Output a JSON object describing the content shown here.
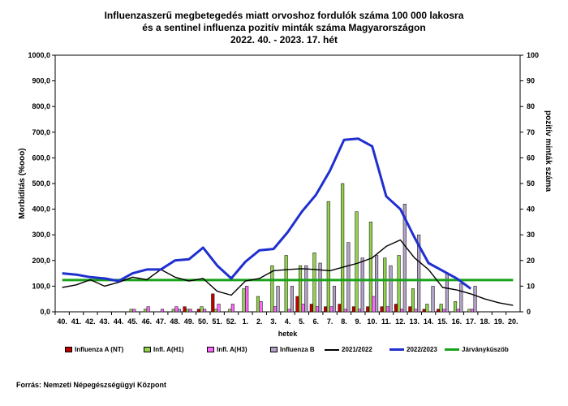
{
  "title_lines": [
    "Influenzaszerű megbetegedés miatt orvoshoz fordulók száma 100 000 lakosra",
    "és a sentinel influenza pozitív minták száma Magyarországon",
    "2022. 40. - 2023. 17. hét"
  ],
  "source": "Forrás: Nemzeti Népegészségügyi Központ",
  "chart_data": {
    "type": "bar",
    "xlabel": "hetek",
    "ylabel": "Morbiditás (%ooo)",
    "y2label": "pozitív minták száma",
    "ylim": [
      0,
      1000
    ],
    "y2lim": [
      0,
      100
    ],
    "yticks": [
      "0,0",
      "100,0",
      "200,0",
      "300,0",
      "400,0",
      "500,0",
      "600,0",
      "700,0",
      "800,0",
      "900,0",
      "1000,0"
    ],
    "y2ticks": [
      "0",
      "10",
      "20",
      "30",
      "40",
      "50",
      "60",
      "70",
      "80",
      "90",
      "100"
    ],
    "categories": [
      "40.",
      "41.",
      "42.",
      "43.",
      "44.",
      "45.",
      "46.",
      "47.",
      "48.",
      "49.",
      "50.",
      "51.",
      "52.",
      "1.",
      "2.",
      "3.",
      "4.",
      "5.",
      "6.",
      "7.",
      "8.",
      "9.",
      "10.",
      "11.",
      "12.",
      "13.",
      "14.",
      "15.",
      "16.",
      "17.",
      "18.",
      "19.",
      "20."
    ],
    "bar_series": [
      {
        "name": "Influenza A (NT)",
        "color": "#c00000",
        "values": [
          0,
          0,
          0,
          0,
          0,
          0,
          0,
          0,
          0,
          2,
          1,
          7,
          0,
          0,
          0,
          0,
          0,
          6,
          3,
          2,
          3,
          2,
          2,
          2,
          3,
          2,
          1,
          1,
          0,
          0,
          0,
          0,
          0
        ]
      },
      {
        "name": "Infl. A(H1)",
        "color": "#92d050",
        "values": [
          0,
          0,
          0,
          0,
          0,
          1,
          1,
          0,
          1,
          1,
          2,
          1,
          1,
          9,
          6,
          18,
          22,
          18,
          23,
          43,
          50,
          39,
          35,
          21,
          22,
          9,
          3,
          3,
          4,
          1,
          0,
          0,
          0
        ]
      },
      {
        "name": "Infl. A(H3)",
        "color": "#ff66ff",
        "values": [
          0,
          0,
          0,
          0,
          0,
          1,
          2,
          1,
          2,
          1,
          1,
          3,
          3,
          10,
          4,
          2,
          1,
          3,
          2,
          2,
          1,
          1,
          6,
          2,
          1,
          1,
          0,
          1,
          1,
          1,
          0,
          0,
          0
        ]
      },
      {
        "name": "Influenza B",
        "color": "#b3a2c7",
        "values": [
          0,
          0,
          0,
          0,
          0,
          0,
          0,
          0,
          1,
          0,
          0,
          0,
          0,
          0,
          0,
          10,
          10,
          18,
          19,
          10,
          27,
          21,
          22,
          18,
          42,
          30,
          10,
          15,
          11,
          10,
          0,
          0,
          0
        ]
      }
    ],
    "line_series": [
      {
        "name": "2021/2022",
        "color": "#000000",
        "values": [
          95,
          105,
          125,
          100,
          115,
          135,
          125,
          165,
          135,
          120,
          130,
          80,
          65,
          120,
          130,
          160,
          165,
          168,
          165,
          160,
          175,
          190,
          210,
          255,
          280,
          210,
          165,
          95,
          85,
          70,
          50,
          35,
          25
        ]
      },
      {
        "name": "2022/2023",
        "color": "#1f2fd0",
        "values": [
          150,
          145,
          135,
          130,
          120,
          150,
          165,
          165,
          200,
          205,
          250,
          180,
          130,
          195,
          240,
          245,
          310,
          390,
          455,
          550,
          670,
          675,
          645,
          450,
          400,
          290,
          190,
          160,
          130,
          90,
          null,
          null,
          null
        ]
      }
    ],
    "threshold": {
      "name": "Járványküszöb",
      "color": "#1aa21a",
      "value": 124
    },
    "grid": false,
    "legend_position": "bottom"
  }
}
